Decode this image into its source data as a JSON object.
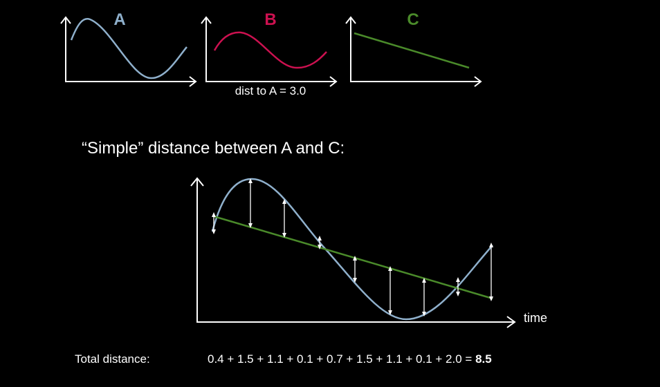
{
  "panels": [
    {
      "label": "A"
    },
    {
      "label": "B",
      "note": "dist to A = 3.0"
    },
    {
      "label": "C"
    }
  ],
  "heading": "“Simple” distance between A and C:",
  "main_chart": {
    "x_axis_label": "time"
  },
  "total": {
    "label": "Total distance:",
    "equation": "0.4 + 1.5 + 1.1 + 0.1 + 0.7 + 1.5 + 1.1 + 0.1 + 2.0 =",
    "result": "8.5"
  }
}
